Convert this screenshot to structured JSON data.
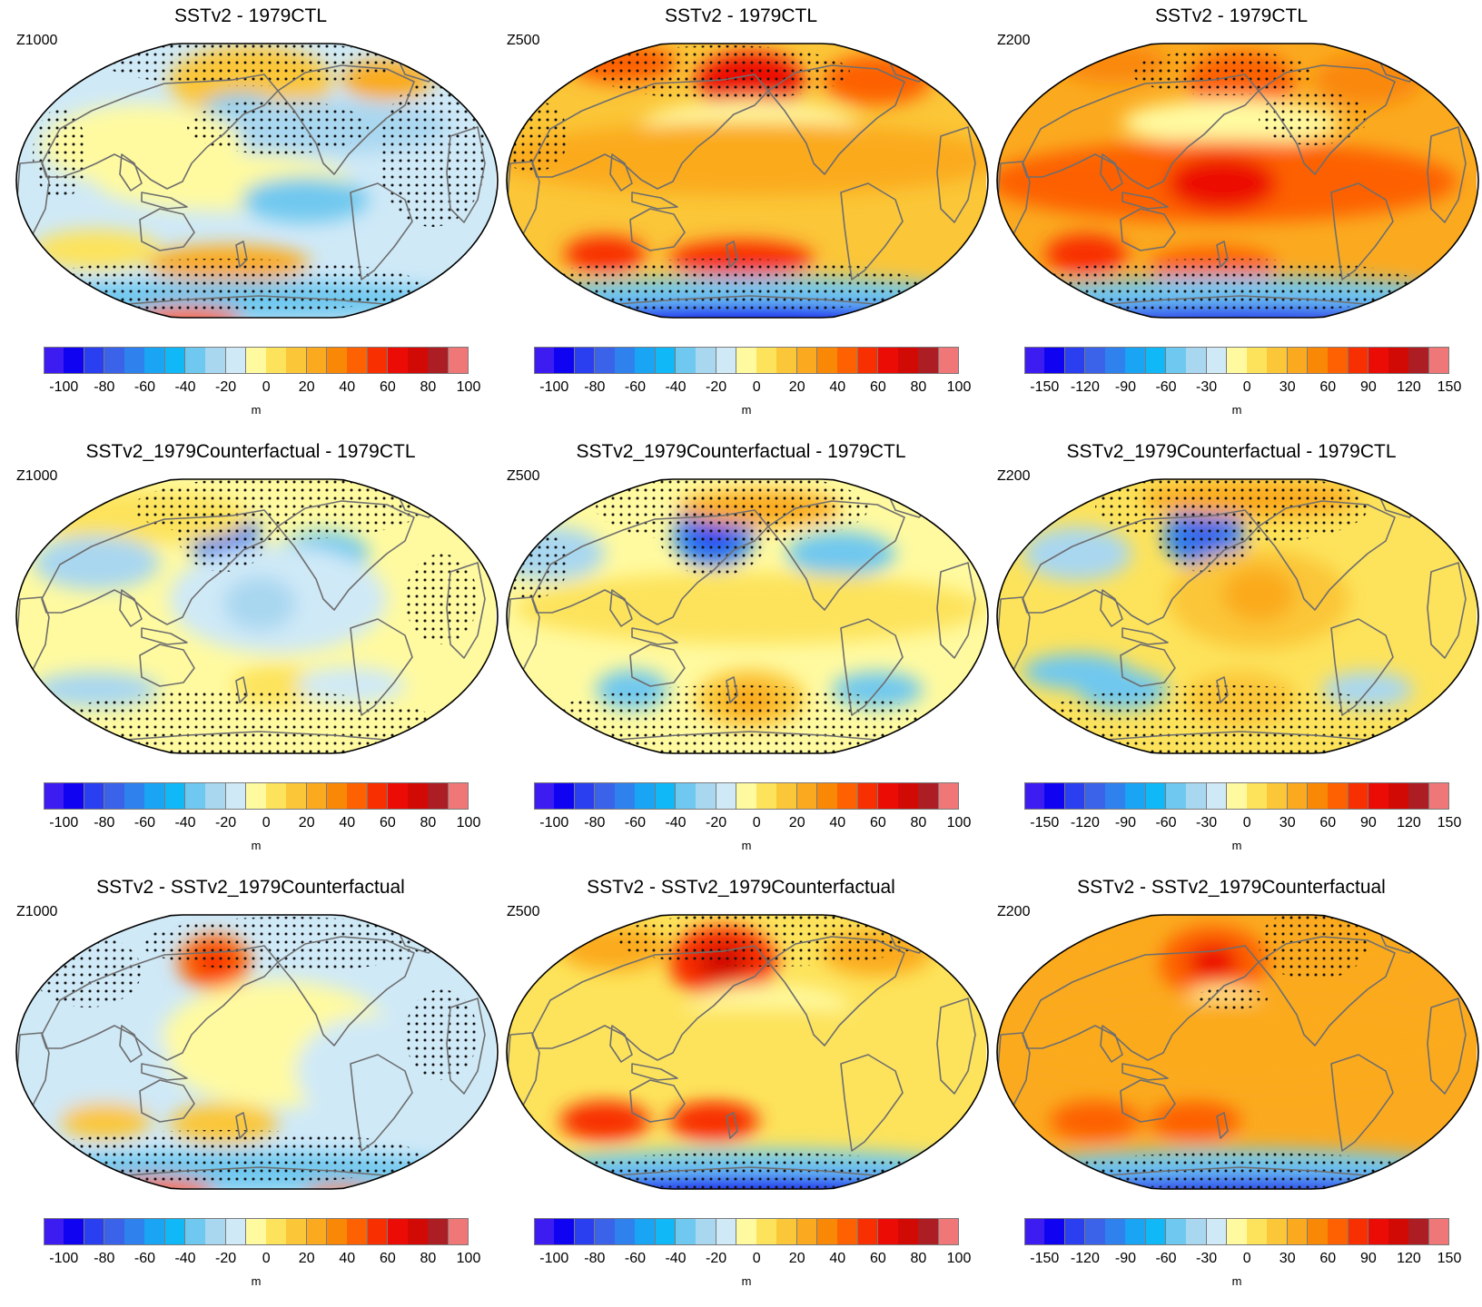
{
  "colorbar_colors": [
    "#3d1cf2",
    "#1003f2",
    "#2a3ff0",
    "#3b63e9",
    "#2f82ee",
    "#19a4f4",
    "#10b8f7",
    "#6fc8ef",
    "#a9d7f0",
    "#cfe9f7",
    "#fffaa0",
    "#fde35b",
    "#fbc638",
    "#fbaa1f",
    "#f98807",
    "#fd6102",
    "#f82f00",
    "#ec0c06",
    "#d20a06",
    "#ac1e23",
    "#f07778"
  ],
  "colorbar_ticks_100": [
    "-100",
    "-80",
    "-60",
    "-40",
    "-20",
    "0",
    "20",
    "40",
    "60",
    "80",
    "100"
  ],
  "colorbar_ticks_150": [
    "-150",
    "-120",
    "-90",
    "-60",
    "-30",
    "0",
    "30",
    "60",
    "90",
    "120",
    "150"
  ],
  "panels": [
    {
      "title": "SSTv2 - 1979CTL",
      "level": "Z1000",
      "unit": "m",
      "ticks": "100",
      "base": "#cfe9f7"
    },
    {
      "title": "SSTv2 - 1979CTL",
      "level": "Z500",
      "unit": "m",
      "ticks": "100",
      "base": "#fbc638"
    },
    {
      "title": "SSTv2 - 1979CTL",
      "level": "Z200",
      "unit": "m",
      "ticks": "150",
      "base": "#fbaa1f"
    },
    {
      "title": "SSTv2_1979Counterfactual - 1979CTL",
      "level": "Z1000",
      "unit": "m",
      "ticks": "100",
      "base": "#fffaa0"
    },
    {
      "title": "SSTv2_1979Counterfactual - 1979CTL",
      "level": "Z500",
      "unit": "m",
      "ticks": "100",
      "base": "#fffaa0"
    },
    {
      "title": "SSTv2_1979Counterfactual - 1979CTL",
      "level": "Z200",
      "unit": "m",
      "ticks": "150",
      "base": "#fde35b"
    },
    {
      "title": "SSTv2 - SSTv2_1979Counterfactual",
      "level": "Z1000",
      "unit": "m",
      "ticks": "100",
      "base": "#cfe9f7"
    },
    {
      "title": "SSTv2 - SSTv2_1979Counterfactual",
      "level": "Z500",
      "unit": "m",
      "ticks": "100",
      "base": "#fde35b"
    },
    {
      "title": "SSTv2 - SSTv2_1979Counterfactual",
      "level": "Z200",
      "unit": "m",
      "ticks": "150",
      "base": "#fbaa1f"
    }
  ]
}
